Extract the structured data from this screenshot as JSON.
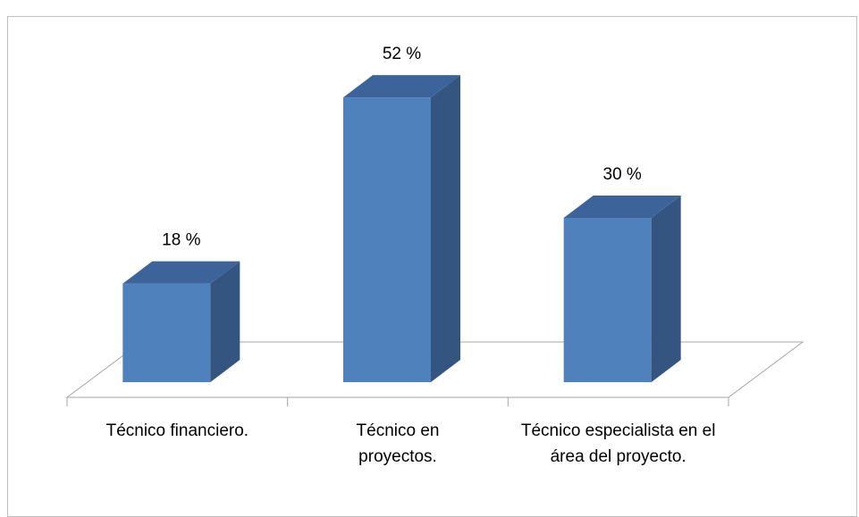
{
  "chart_data": {
    "type": "bar3d",
    "categories": [
      "Técnico financiero.",
      "Técnico en proyectos.",
      "Técnico especialista en el área del proyecto."
    ],
    "values": [
      18,
      52,
      30
    ],
    "value_labels": [
      "18 %",
      "52 %",
      "30 %"
    ],
    "color": "#4f81bd",
    "ylim": [
      0,
      60
    ]
  }
}
